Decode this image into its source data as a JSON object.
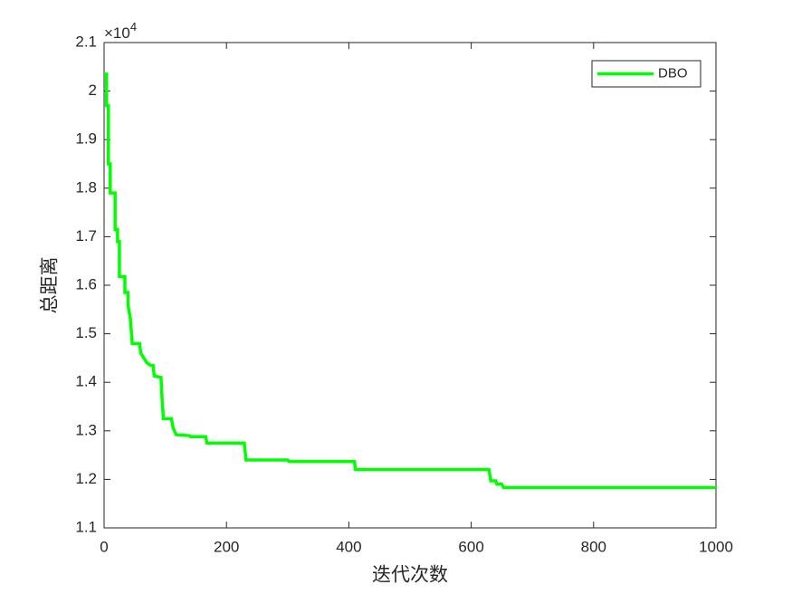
{
  "chart_data": {
    "type": "line",
    "xlabel": "迭代次数",
    "ylabel": "总距离",
    "y_scale_base": "×10",
    "y_scale_exponent": "4",
    "xlim": [
      0,
      1000
    ],
    "xticks": [
      0,
      200,
      400,
      600,
      800,
      1000
    ],
    "ylim": [
      1.1,
      2.1
    ],
    "yticks": [
      1.1,
      1.2,
      1.3,
      1.4,
      1.5,
      1.6,
      1.7,
      1.8,
      1.9,
      2,
      2.1
    ],
    "legend": "upper right",
    "series": [
      {
        "name": "DBO",
        "color": "#00ff00",
        "x": [
          0,
          4,
          4,
          7,
          7,
          10,
          10,
          18,
          18,
          22,
          22,
          25,
          25,
          34,
          34,
          39,
          39,
          43,
          46,
          58,
          60,
          65,
          70,
          76,
          80,
          82,
          93,
          95,
          97,
          110,
          113,
          118,
          140,
          142,
          166,
          168,
          229,
          232,
          300,
          302,
          409,
          411,
          629,
          632,
          640,
          642,
          650,
          653,
          1000
        ],
        "values": [
          2.035,
          2.035,
          1.97,
          1.97,
          1.85,
          1.85,
          1.79,
          1.79,
          1.715,
          1.715,
          1.69,
          1.69,
          1.618,
          1.618,
          1.585,
          1.585,
          1.56,
          1.53,
          1.48,
          1.48,
          1.46,
          1.45,
          1.44,
          1.435,
          1.435,
          1.413,
          1.41,
          1.36,
          1.325,
          1.325,
          1.305,
          1.292,
          1.29,
          1.288,
          1.288,
          1.275,
          1.275,
          1.24,
          1.24,
          1.237,
          1.237,
          1.22,
          1.22,
          1.197,
          1.197,
          1.19,
          1.19,
          1.183,
          1.183
        ]
      }
    ]
  }
}
